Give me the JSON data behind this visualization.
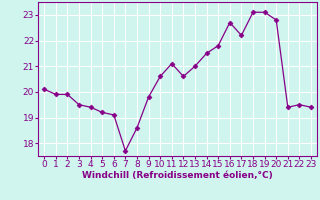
{
  "x": [
    0,
    1,
    2,
    3,
    4,
    5,
    6,
    7,
    8,
    9,
    10,
    11,
    12,
    13,
    14,
    15,
    16,
    17,
    18,
    19,
    20,
    21,
    22,
    23
  ],
  "y": [
    20.1,
    19.9,
    19.9,
    19.5,
    19.4,
    19.2,
    19.1,
    17.7,
    18.6,
    19.8,
    20.6,
    21.1,
    20.6,
    21.0,
    21.5,
    21.8,
    22.7,
    22.2,
    23.1,
    23.1,
    22.8,
    19.4,
    19.5,
    19.4
  ],
  "line_color": "#880088",
  "marker": "D",
  "markersize": 2.5,
  "linewidth": 0.9,
  "xlabel": "Windchill (Refroidissement éolien,°C)",
  "ylim": [
    17.5,
    23.5
  ],
  "xlim": [
    -0.5,
    23.5
  ],
  "yticks": [
    18,
    19,
    20,
    21,
    22,
    23
  ],
  "xticks": [
    0,
    1,
    2,
    3,
    4,
    5,
    6,
    7,
    8,
    9,
    10,
    11,
    12,
    13,
    14,
    15,
    16,
    17,
    18,
    19,
    20,
    21,
    22,
    23
  ],
  "bg_color": "#cff5ee",
  "grid_color": "#ffffff",
  "tick_color": "#880088",
  "label_color": "#880088",
  "xlabel_fontsize": 6.5,
  "tick_fontsize": 6.5
}
